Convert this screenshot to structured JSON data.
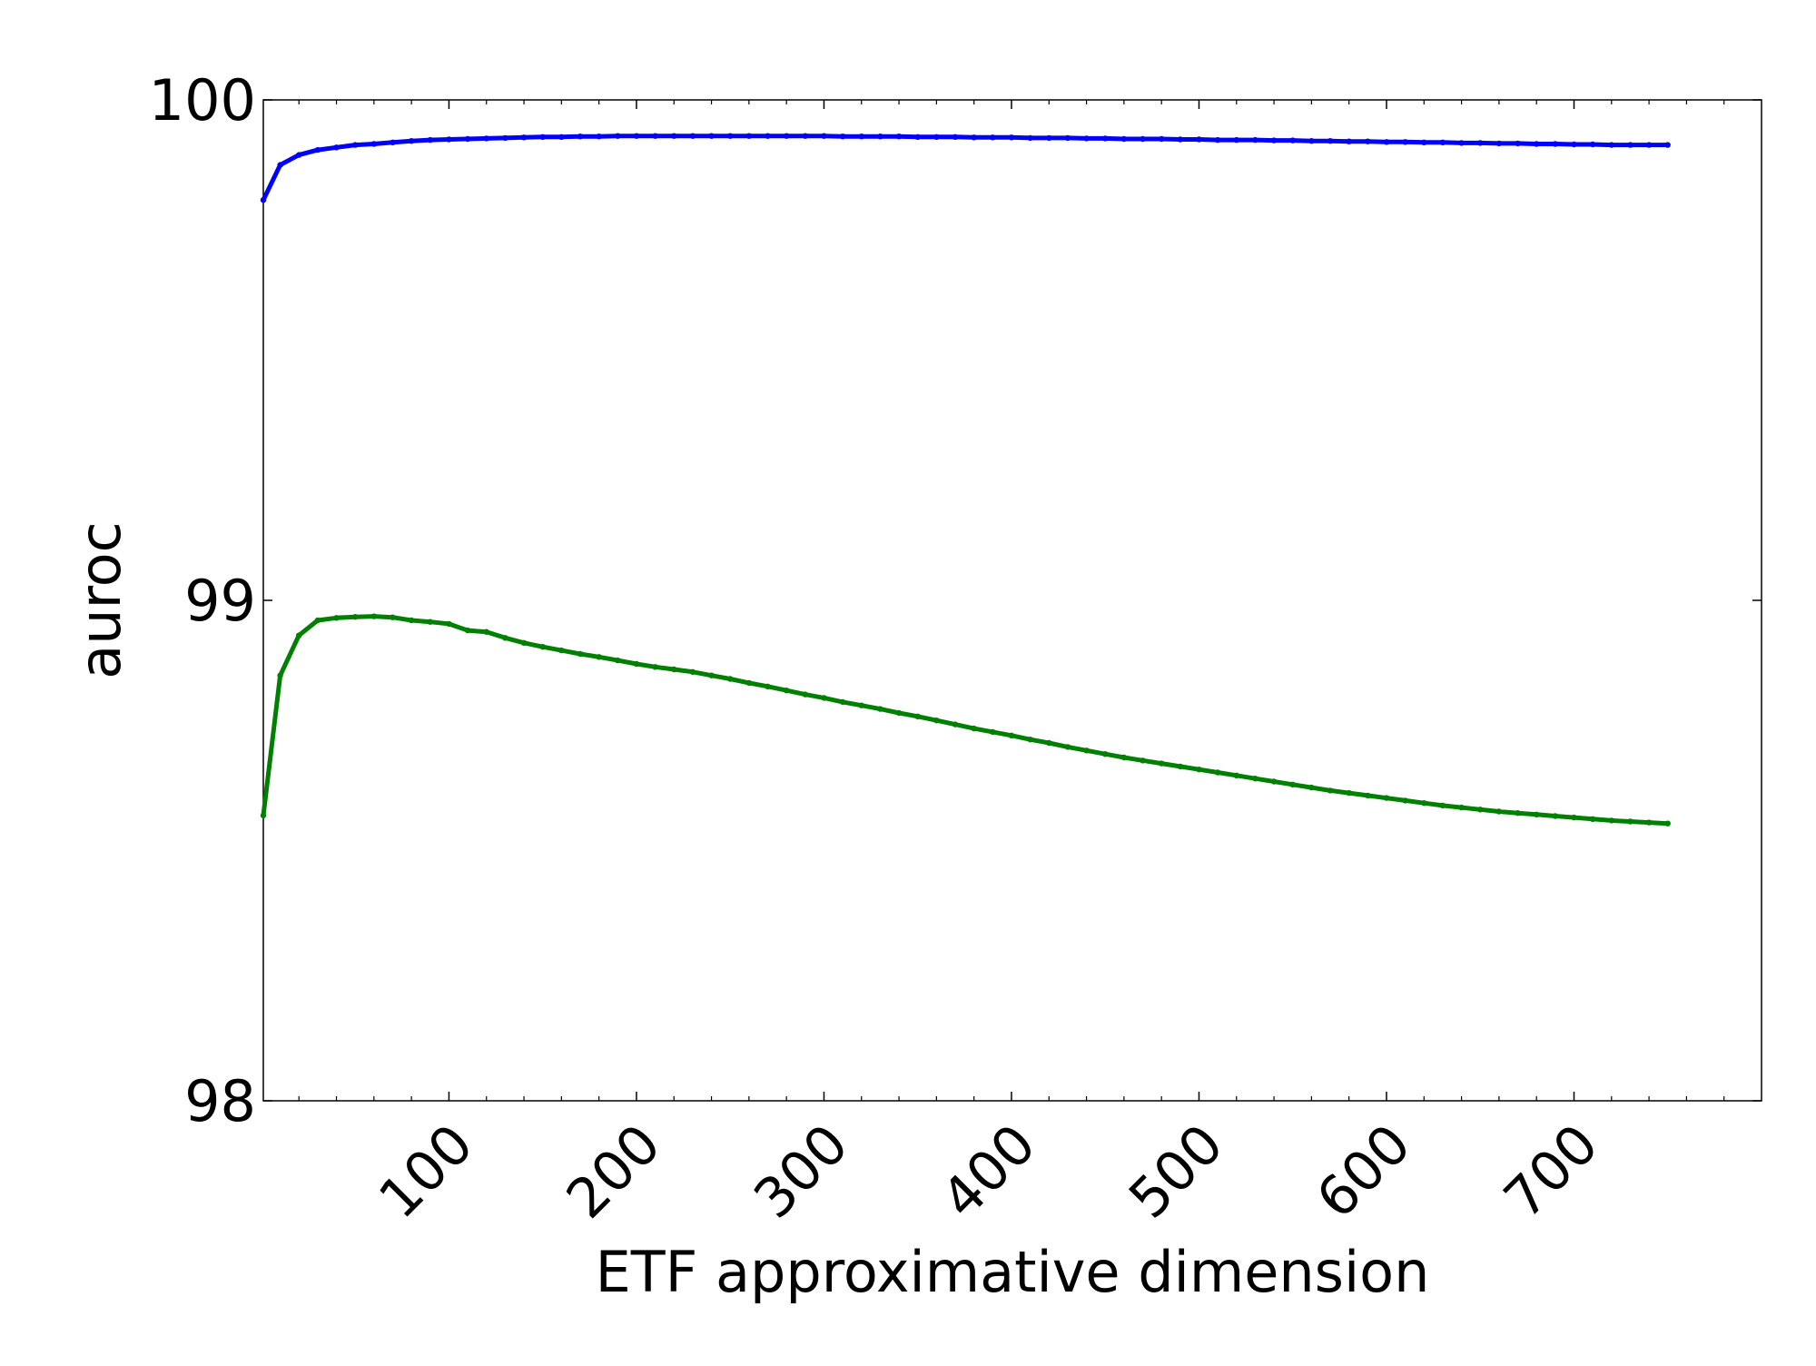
{
  "chart_data": {
    "type": "line",
    "title": "",
    "xlabel": "ETF approximative dimension",
    "ylabel": "auroc",
    "xlim": [
      1,
      800
    ],
    "ylim": [
      98,
      100
    ],
    "xticks": [
      100,
      200,
      300,
      400,
      500,
      600,
      700
    ],
    "yticks": [
      98,
      99,
      100
    ],
    "xtick_labels": [
      "100",
      "200",
      "300",
      "400",
      "500",
      "600",
      "700"
    ],
    "ytick_labels": [
      "98",
      "99",
      "100"
    ],
    "grid": false,
    "legend": "none",
    "x": [
      1,
      10,
      20,
      30,
      40,
      50,
      60,
      70,
      80,
      90,
      100,
      110,
      120,
      130,
      140,
      150,
      160,
      170,
      180,
      190,
      200,
      210,
      220,
      230,
      240,
      250,
      260,
      270,
      280,
      290,
      300,
      310,
      320,
      330,
      340,
      350,
      360,
      370,
      380,
      390,
      400,
      410,
      420,
      430,
      440,
      450,
      460,
      470,
      480,
      490,
      500,
      510,
      520,
      530,
      540,
      550,
      560,
      570,
      580,
      590,
      600,
      610,
      620,
      630,
      640,
      650,
      660,
      670,
      680,
      690,
      700,
      710,
      720,
      730,
      740,
      750
    ],
    "series": [
      {
        "color": "#0000ff",
        "values": [
          99.8,
          99.87,
          99.89,
          99.9,
          99.905,
          99.91,
          99.912,
          99.915,
          99.918,
          99.92,
          99.921,
          99.922,
          99.923,
          99.924,
          99.925,
          99.926,
          99.926,
          99.927,
          99.927,
          99.928,
          99.928,
          99.928,
          99.928,
          99.928,
          99.928,
          99.928,
          99.928,
          99.928,
          99.928,
          99.928,
          99.928,
          99.927,
          99.927,
          99.927,
          99.927,
          99.926,
          99.926,
          99.926,
          99.925,
          99.925,
          99.925,
          99.924,
          99.924,
          99.924,
          99.923,
          99.923,
          99.922,
          99.922,
          99.922,
          99.921,
          99.921,
          99.92,
          99.92,
          99.92,
          99.919,
          99.919,
          99.918,
          99.918,
          99.917,
          99.917,
          99.916,
          99.916,
          99.915,
          99.915,
          99.914,
          99.914,
          99.913,
          99.913,
          99.912,
          99.912,
          99.911,
          99.911,
          99.91,
          99.91,
          99.91,
          99.91
        ]
      },
      {
        "color": "#008000",
        "values": [
          98.57,
          98.85,
          98.93,
          98.96,
          98.965,
          98.967,
          98.968,
          98.966,
          98.96,
          98.957,
          98.953,
          98.94,
          98.937,
          98.925,
          98.915,
          98.907,
          98.9,
          98.893,
          98.887,
          98.88,
          98.873,
          98.867,
          98.862,
          98.857,
          98.85,
          98.843,
          98.835,
          98.828,
          98.82,
          98.812,
          98.805,
          98.797,
          98.79,
          98.783,
          98.775,
          98.768,
          98.76,
          98.752,
          98.744,
          98.737,
          98.73,
          98.722,
          98.715,
          98.707,
          98.7,
          98.693,
          98.686,
          98.68,
          98.674,
          98.668,
          98.662,
          98.656,
          98.65,
          98.644,
          98.638,
          98.632,
          98.626,
          98.62,
          98.615,
          98.61,
          98.605,
          98.6,
          98.595,
          98.59,
          98.586,
          98.582,
          98.578,
          98.575,
          98.572,
          98.569,
          98.566,
          98.563,
          98.56,
          98.558,
          98.556,
          98.554
        ]
      }
    ]
  }
}
